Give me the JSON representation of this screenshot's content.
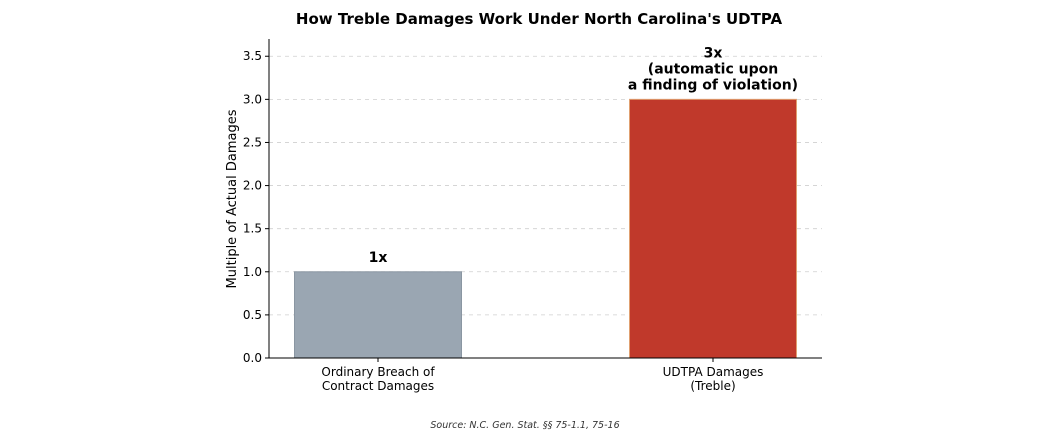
{
  "chart_data": {
    "type": "bar",
    "title": "How Treble Damages Work Under North Carolina's UDTPA",
    "xlabel": "",
    "ylabel": "Multiple of Actual Damages",
    "ylim": [
      0,
      3.7
    ],
    "yticks": [
      0.0,
      0.5,
      1.0,
      1.5,
      2.0,
      2.5,
      3.0,
      3.5
    ],
    "ytick_labels": [
      "0.0",
      "0.5",
      "1.0",
      "1.5",
      "2.0",
      "2.5",
      "3.0",
      "3.5"
    ],
    "grid": "horizontal dashed",
    "categories": [
      [
        "Ordinary Breach of",
        "Contract Damages"
      ],
      [
        "UDTPA Damages",
        "(Treble)"
      ]
    ],
    "values": [
      1,
      3
    ],
    "bar_colors": [
      "#9aa6b2",
      "#c0392b"
    ],
    "bar_edge_colors": [
      "#8a96a2",
      "#e0a070"
    ],
    "data_labels": [
      [
        "1x"
      ],
      [
        "3x",
        "(automatic upon",
        "a finding of violation)"
      ]
    ],
    "source": "Source: N.C. Gen. Stat. §§ 75-1.1, 75-16"
  }
}
